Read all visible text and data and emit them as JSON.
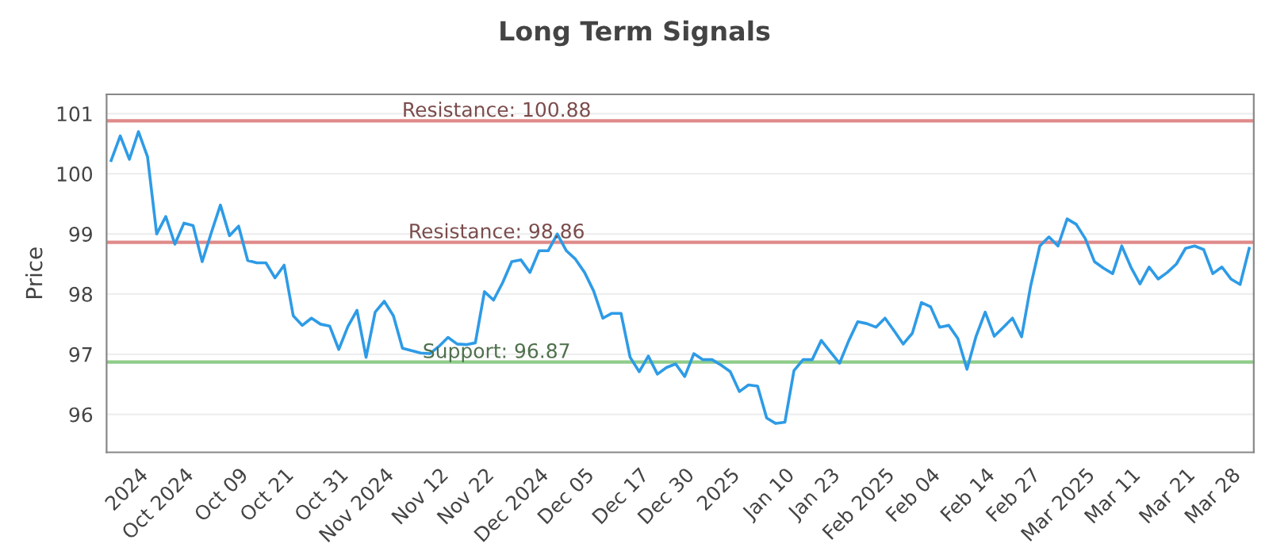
{
  "chart_data": {
    "type": "line",
    "title": "Long Term Signals",
    "ylabel": "Price",
    "categories": [
      null,
      null,
      null,
      "2024",
      null,
      null,
      null,
      null,
      "Oct 2024",
      null,
      null,
      null,
      null,
      null,
      "Oct 09",
      null,
      null,
      null,
      null,
      "Oct 21",
      null,
      null,
      null,
      null,
      null,
      "Oct 31",
      null,
      null,
      null,
      null,
      "Nov 2024",
      null,
      null,
      null,
      null,
      null,
      "Nov 12",
      null,
      null,
      null,
      null,
      "Nov 22",
      null,
      null,
      null,
      null,
      null,
      "Dec 2024",
      null,
      null,
      null,
      null,
      "Dec 05",
      null,
      null,
      null,
      null,
      null,
      "Dec 17",
      null,
      null,
      null,
      null,
      "Dec 30",
      null,
      null,
      null,
      null,
      "2025",
      null,
      null,
      null,
      null,
      null,
      "Jan 10",
      null,
      null,
      null,
      null,
      "Jan 23",
      null,
      null,
      null,
      null,
      null,
      "Feb 2025",
      null,
      null,
      null,
      null,
      "Feb 04",
      null,
      null,
      null,
      null,
      null,
      "Feb 14",
      null,
      null,
      null,
      null,
      "Feb 27",
      null,
      null,
      null,
      null,
      null,
      "Mar 2025",
      null,
      null,
      null,
      null,
      "Mar 11",
      null,
      null,
      null,
      null,
      null,
      "Mar 21",
      null,
      null,
      null,
      null,
      "Mar 28",
      null,
      null
    ],
    "series": [
      {
        "color": "#2e9be6",
        "values": [
          100.22,
          100.63,
          100.24,
          100.7,
          100.28,
          99.0,
          99.29,
          98.83,
          99.18,
          99.14,
          98.54,
          99.02,
          99.48,
          98.97,
          99.13,
          98.56,
          98.52,
          98.52,
          98.27,
          98.48,
          97.64,
          97.48,
          97.6,
          97.5,
          97.47,
          97.08,
          97.46,
          97.73,
          96.95,
          97.7,
          97.88,
          97.64,
          97.1,
          97.06,
          97.02,
          97.01,
          97.13,
          97.28,
          97.17,
          97.16,
          97.19,
          98.04,
          97.9,
          98.19,
          98.54,
          98.57,
          98.36,
          98.72,
          98.72,
          99.0,
          98.72,
          98.58,
          98.36,
          98.05,
          97.6,
          97.68,
          97.68,
          96.95,
          96.71,
          96.97,
          96.67,
          96.78,
          96.84,
          96.63,
          97.01,
          96.91,
          96.91,
          96.82,
          96.71,
          96.38,
          96.49,
          96.47,
          95.94,
          95.85,
          95.87,
          96.73,
          96.91,
          96.91,
          97.23,
          97.04,
          96.85,
          97.22,
          97.54,
          97.51,
          97.45,
          97.6,
          97.39,
          97.17,
          97.35,
          97.86,
          97.79,
          97.45,
          97.48,
          97.26,
          96.75,
          97.3,
          97.7,
          97.3,
          97.45,
          97.6,
          97.29,
          98.14,
          98.8,
          98.95,
          98.8,
          99.25,
          99.16,
          98.92,
          98.54,
          98.43,
          98.34,
          98.8,
          98.45,
          98.17,
          98.45,
          98.25,
          98.36,
          98.5,
          98.76,
          98.8,
          98.74,
          98.34,
          98.45,
          98.25,
          98.16,
          98.76
        ]
      }
    ],
    "ylim": [
      95.37,
      101.32
    ],
    "yticks": [
      96,
      97,
      98,
      99,
      100,
      101
    ],
    "grid": "y",
    "ref_lines": [
      {
        "axis": "y",
        "value": 100.88,
        "label": "Resistance: 100.88",
        "color": "#e08a8a"
      },
      {
        "axis": "y",
        "value": 98.86,
        "label": "Resistance: 98.86",
        "color": "#e08a8a"
      },
      {
        "axis": "y",
        "value": 96.87,
        "label": "Support: 96.87",
        "color": "#8fcc8a"
      }
    ]
  }
}
